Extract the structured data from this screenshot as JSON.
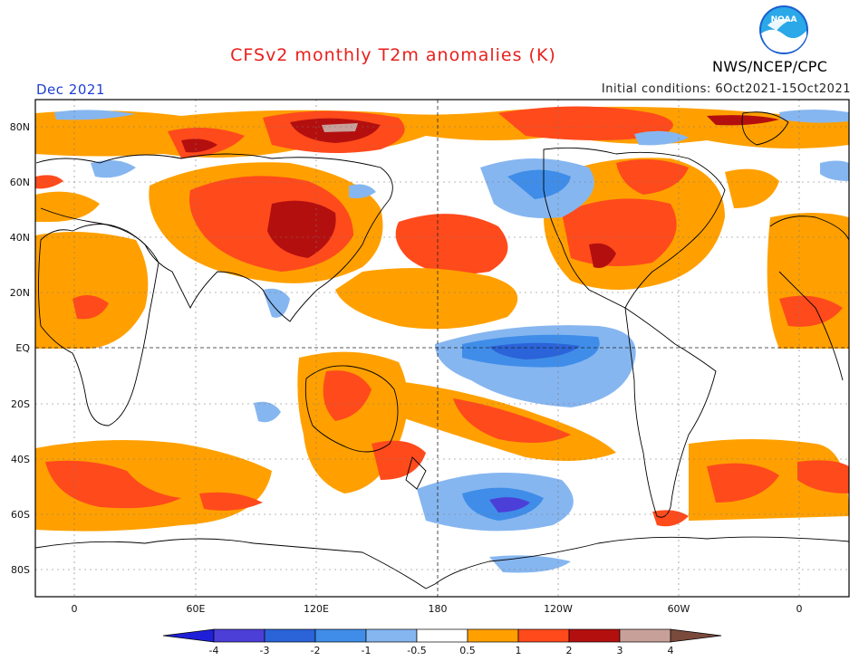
{
  "header": {
    "title": "CFSv2 monthly T2m anomalies (K)",
    "month": "Dec 2021",
    "initial_conditions": "Initial conditions: 6Oct2021-15Oct2021",
    "agency": "NWS/NCEP/CPC",
    "logo_text": "NOAA"
  },
  "axes": {
    "lat_labels": [
      "80N",
      "60N",
      "40N",
      "20N",
      "EQ",
      "20S",
      "40S",
      "60S",
      "80S"
    ],
    "lon_labels": [
      "0",
      "60E",
      "120E",
      "180",
      "120W",
      "60W",
      "0"
    ]
  },
  "colorbar": {
    "labels": [
      "-4",
      "-3",
      "-2",
      "-1",
      "-0.5",
      "0.5",
      "1",
      "2",
      "3",
      "4"
    ],
    "colors": [
      "#1f1fd8",
      "#4c3fd8",
      "#2b63d8",
      "#3f8de8",
      "#86b6f0",
      "#ffffff",
      "#ffa000",
      "#ff4a1c",
      "#b40f0f",
      "#c8a09a",
      "#7a4a3c"
    ]
  }
}
